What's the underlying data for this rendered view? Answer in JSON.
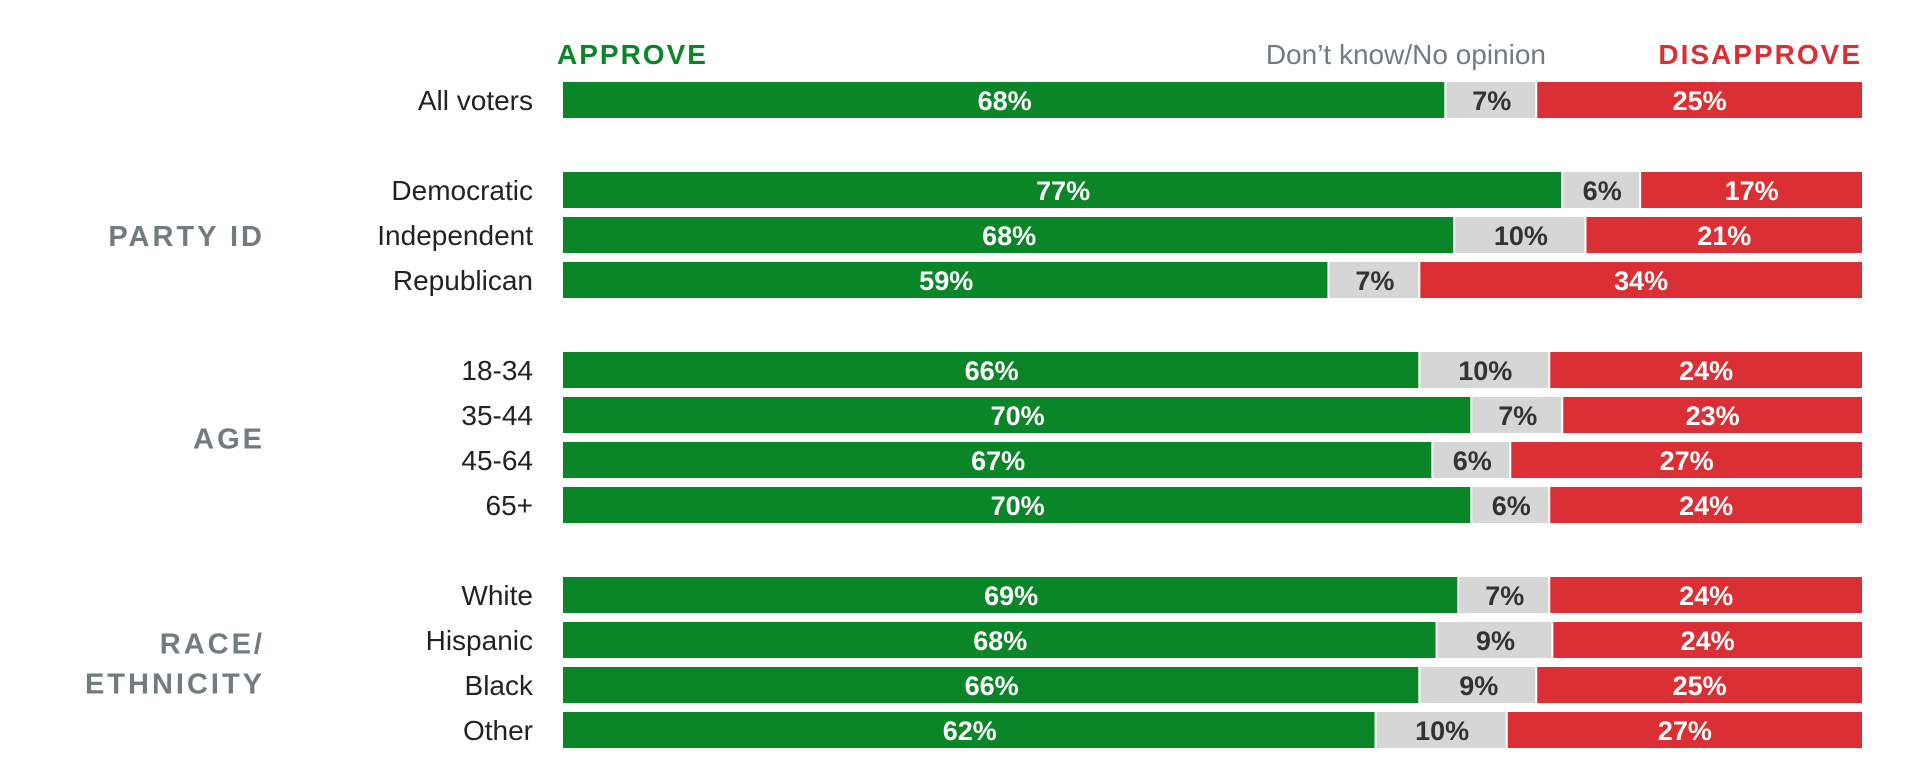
{
  "chart_data": {
    "type": "bar",
    "stacked": true,
    "orientation": "horizontal",
    "legend": {
      "approve": "APPROVE",
      "dont_know": "Don’t know/No opinion",
      "disapprove": "DISAPPROVE",
      "placement": "top"
    },
    "colors": {
      "approve": "#0a8528",
      "dont_know": "#d6d6d6",
      "disapprove": "#da3035",
      "group_label": "#737b7e",
      "row_label": "#222222",
      "value_dark": "#333333",
      "value_light": "#ffffff"
    },
    "groups": [
      {
        "label": "",
        "rows": [
          {
            "category": "All voters",
            "approve": 68,
            "dont_know": 7,
            "disapprove": 25
          }
        ]
      },
      {
        "label": "PARTY ID",
        "rows": [
          {
            "category": "Democratic",
            "approve": 77,
            "dont_know": 6,
            "disapprove": 17
          },
          {
            "category": "Independent",
            "approve": 68,
            "dont_know": 10,
            "disapprove": 21
          },
          {
            "category": "Republican",
            "approve": 59,
            "dont_know": 7,
            "disapprove": 34
          }
        ]
      },
      {
        "label": "AGE",
        "rows": [
          {
            "category": "18-34",
            "approve": 66,
            "dont_know": 10,
            "disapprove": 24
          },
          {
            "category": "35-44",
            "approve": 70,
            "dont_know": 7,
            "disapprove": 23
          },
          {
            "category": "45-64",
            "approve": 67,
            "dont_know": 6,
            "disapprove": 27
          },
          {
            "category": "65+",
            "approve": 70,
            "dont_know": 6,
            "disapprove": 24
          }
        ]
      },
      {
        "label": "RACE/\nETHNICITY",
        "rows": [
          {
            "category": "White",
            "approve": 69,
            "dont_know": 7,
            "disapprove": 24
          },
          {
            "category": "Hispanic",
            "approve": 68,
            "dont_know": 9,
            "disapprove": 24
          },
          {
            "category": "Black",
            "approve": 66,
            "dont_know": 9,
            "disapprove": 25
          },
          {
            "category": "Other",
            "approve": 62,
            "dont_know": 10,
            "disapprove": 27
          }
        ]
      }
    ],
    "value_suffix": "%"
  }
}
